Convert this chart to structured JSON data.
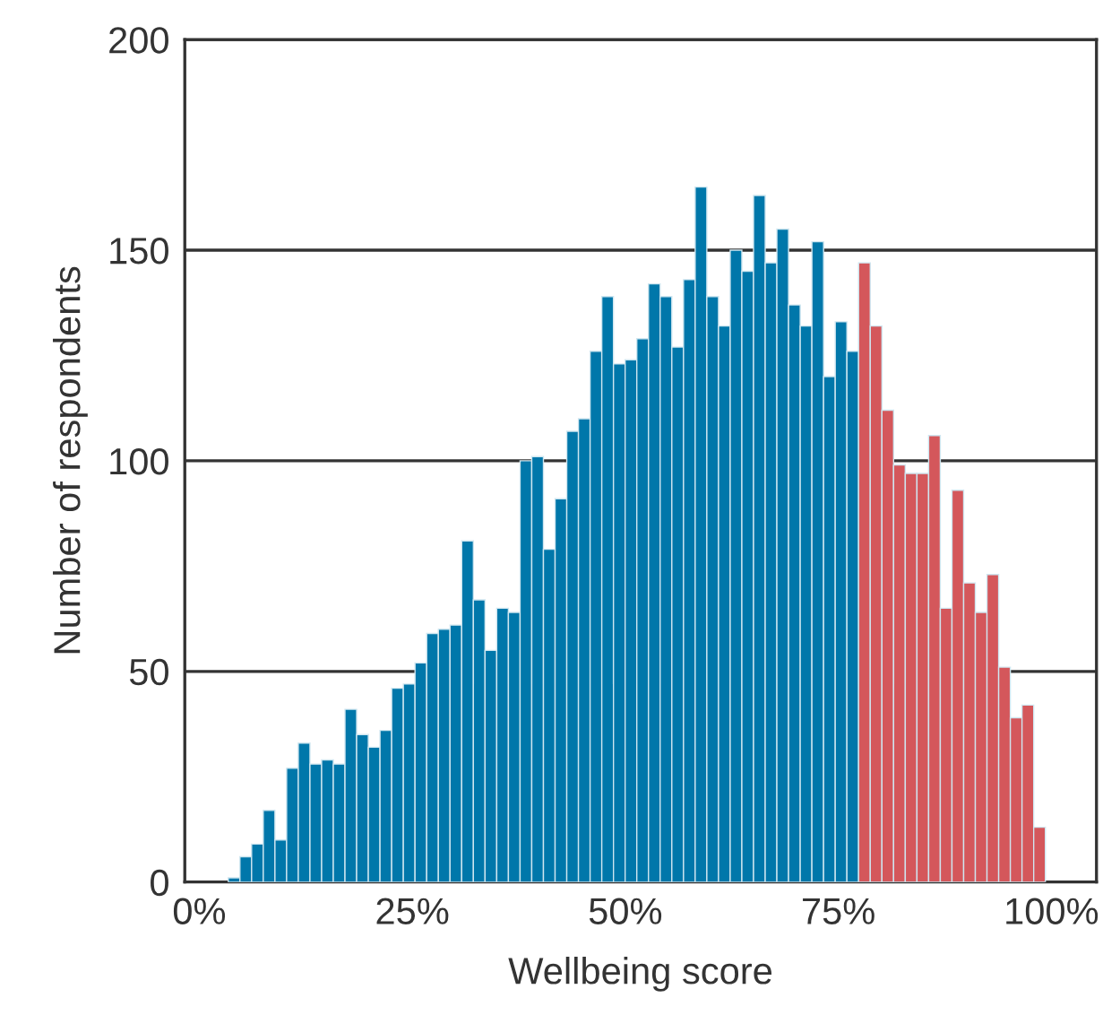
{
  "chart_data": {
    "type": "histogram",
    "xlabel": "Wellbeing score",
    "ylabel": "Number of respondents",
    "bins": [
      3.4,
      4.77,
      6.14,
      7.51,
      8.88,
      10.25,
      11.62,
      12.99,
      14.36,
      15.73,
      17.1,
      18.47,
      19.84,
      21.21,
      22.58,
      23.95,
      25.32,
      26.69,
      28.06,
      29.43,
      30.8,
      32.17,
      33.54,
      34.91,
      36.28,
      37.65,
      39.02,
      40.39,
      41.76,
      43.13,
      44.5,
      45.87,
      47.24,
      48.61,
      49.98,
      51.35,
      52.72,
      54.09,
      55.46,
      56.83,
      58.2,
      59.57,
      60.94,
      62.31,
      63.68,
      65.05,
      66.42,
      67.79,
      69.16,
      70.53,
      71.9,
      73.27,
      74.64,
      76.01,
      77.38,
      78.75,
      80.12,
      81.49,
      82.86,
      84.23,
      85.6,
      86.97,
      88.34,
      89.71,
      91.08,
      92.45,
      93.82,
      95.19,
      96.56,
      97.93,
      99.3
    ],
    "values": [
      1,
      6,
      9,
      17,
      10,
      27,
      33,
      28,
      29,
      28,
      41,
      35,
      32,
      36,
      46,
      47,
      52,
      59,
      60,
      61,
      81,
      67,
      55,
      65,
      64,
      100,
      101,
      79,
      91,
      107,
      110,
      126,
      139,
      123,
      124,
      129,
      142,
      139,
      127,
      143,
      165,
      139,
      132,
      150,
      145,
      163,
      147,
      155,
      137,
      132,
      152,
      120,
      133,
      126,
      147,
      132,
      112,
      99,
      97,
      97,
      106,
      65,
      93,
      71,
      64,
      73,
      51,
      39,
      42,
      13
    ],
    "colors": [
      "#0077aa",
      "#0077aa",
      "#0077aa",
      "#0077aa",
      "#0077aa",
      "#0077aa",
      "#0077aa",
      "#0077aa",
      "#0077aa",
      "#0077aa",
      "#0077aa",
      "#0077aa",
      "#0077aa",
      "#0077aa",
      "#0077aa",
      "#0077aa",
      "#0077aa",
      "#0077aa",
      "#0077aa",
      "#0077aa",
      "#0077aa",
      "#0077aa",
      "#0077aa",
      "#0077aa",
      "#0077aa",
      "#0077aa",
      "#0077aa",
      "#0077aa",
      "#0077aa",
      "#0077aa",
      "#0077aa",
      "#0077aa",
      "#0077aa",
      "#0077aa",
      "#0077aa",
      "#0077aa",
      "#0077aa",
      "#0077aa",
      "#0077aa",
      "#0077aa",
      "#0077aa",
      "#0077aa",
      "#0077aa",
      "#0077aa",
      "#0077aa",
      "#0077aa",
      "#0077aa",
      "#0077aa",
      "#0077aa",
      "#0077aa",
      "#0077aa",
      "#0077aa",
      "#0077aa",
      "#0077aa",
      "#d4575b",
      "#d4575b",
      "#d4575b",
      "#d4575b",
      "#d4575b",
      "#d4575b",
      "#d4575b",
      "#d4575b",
      "#d4575b",
      "#d4575b",
      "#d4575b",
      "#d4575b",
      "#d4575b",
      "#d4575b",
      "#d4575b",
      "#d4575b"
    ],
    "xlim": [
      -1.7,
      105.3
    ],
    "ylim": [
      0,
      200
    ],
    "xticks": [
      {
        "value": 0,
        "label": "0%"
      },
      {
        "value": 25,
        "label": "25%"
      },
      {
        "value": 50,
        "label": "50%"
      },
      {
        "value": 75,
        "label": "75%"
      },
      {
        "value": 100,
        "label": "100%"
      }
    ],
    "yticks": [
      0,
      50,
      100,
      150,
      200
    ],
    "grid": "y"
  }
}
